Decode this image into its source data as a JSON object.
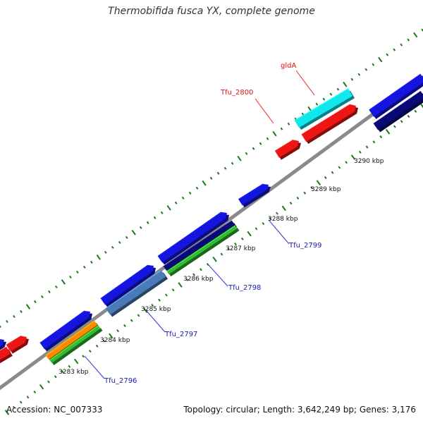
{
  "title": "Thermobifida fusca YX, complete genome",
  "footer": {
    "accession": "Accession: NC_007333",
    "summary": "Topology: circular; Length: 3,642,249 bp; Genes: 3,176"
  },
  "colors": {
    "backbone": "#8a8a8a",
    "tick_mark": "#1a7a1a",
    "label_blue": "#1a1aaa",
    "label_red": "#dd1111",
    "leader_blue": "#3333dd",
    "leader_red": "#ee2222",
    "blue": "#1515e0",
    "red": "#ee1515",
    "cyan": "#11e8ee",
    "navy": "#0a0a75",
    "green": "#33bb33",
    "orange": "#ff8c00",
    "steelblue": "#4a7ab8"
  },
  "scale_labels": [
    "3283 kbp",
    "3284 kbp",
    "3285 kbp",
    "3286 kbp",
    "3287 kbp",
    "3288 kbp",
    "3289 kbp",
    "3290 kbp"
  ],
  "gene_labels": [
    {
      "name": "Tfu_2796",
      "color": "blue"
    },
    {
      "name": "Tfu_2797",
      "color": "blue"
    },
    {
      "name": "Tfu_2798",
      "color": "blue"
    },
    {
      "name": "Tfu_2799",
      "color": "blue"
    },
    {
      "name": "Tfu_2800",
      "color": "red"
    },
    {
      "name": "gldA",
      "color": "red"
    }
  ]
}
